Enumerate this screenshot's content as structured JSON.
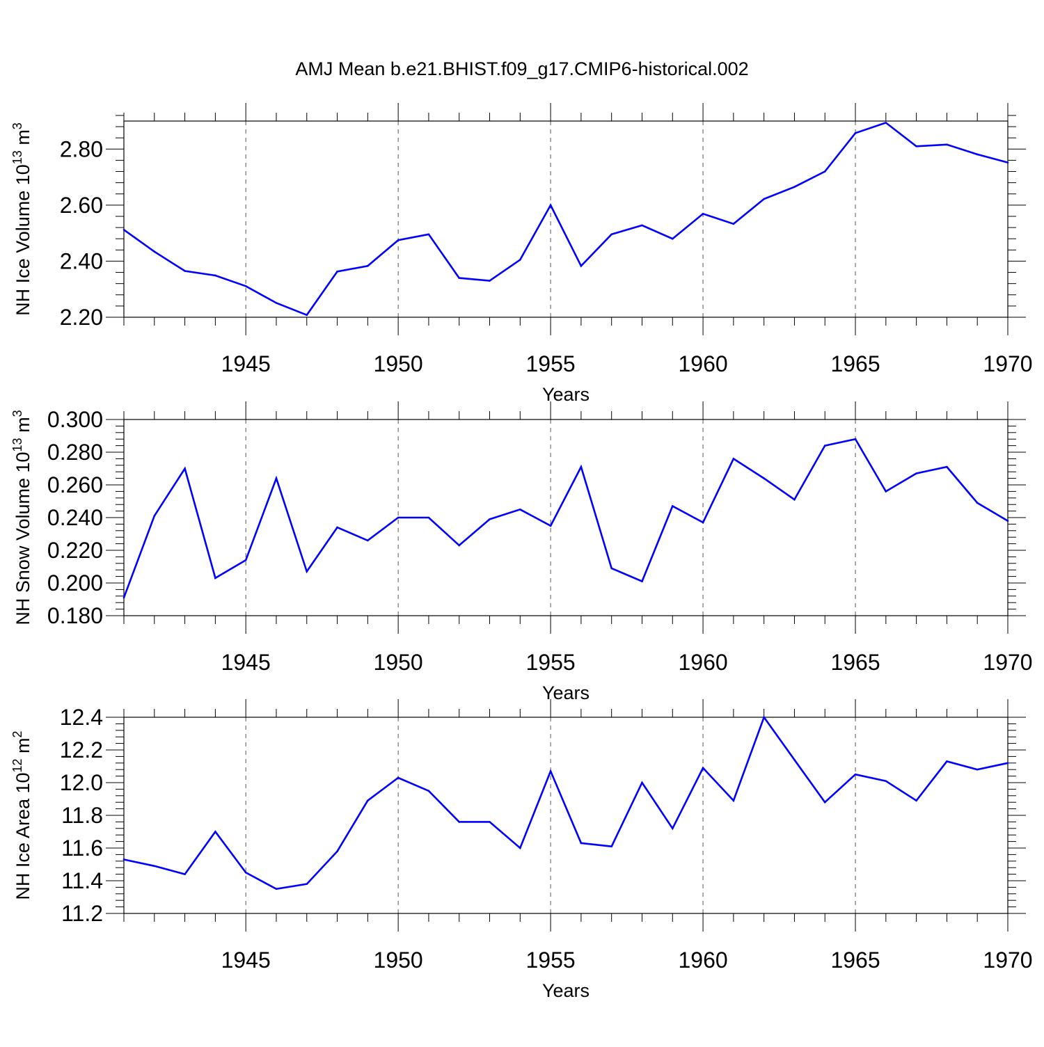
{
  "title": "AMJ Mean b.e21.BHIST.f09_g17.CMIP6-historical.002",
  "colors": {
    "line": "#0000ff",
    "axis": "#000000",
    "grid": "#555555"
  },
  "chart_data": [
    {
      "type": "line",
      "xlabel": "Years",
      "ylabel": {
        "main": "NH Ice Volume 10",
        "sup": "13",
        "unit": " m",
        "unit_sup": "3"
      },
      "xlim": [
        1941,
        1970
      ],
      "ylim": [
        2.2,
        2.9
      ],
      "x_ticks": [
        "1945",
        "1950",
        "1955",
        "1960",
        "1965",
        "1970"
      ],
      "y_ticks": [
        "2.20",
        "2.40",
        "2.60",
        "2.80"
      ],
      "grid": "vertical dashed at major x ticks",
      "x": [
        1941,
        1942,
        1943,
        1944,
        1945,
        1946,
        1947,
        1948,
        1949,
        1950,
        1951,
        1952,
        1953,
        1954,
        1955,
        1956,
        1957,
        1958,
        1959,
        1960,
        1961,
        1962,
        1963,
        1964,
        1965,
        1966,
        1967,
        1968,
        1969,
        1970
      ],
      "values": [
        2.512,
        2.434,
        2.365,
        2.349,
        2.311,
        2.251,
        2.208,
        2.363,
        2.383,
        2.475,
        2.496,
        2.34,
        2.33,
        2.405,
        2.6,
        2.383,
        2.496,
        2.528,
        2.48,
        2.569,
        2.533,
        2.622,
        2.665,
        2.72,
        2.857,
        2.894,
        2.81,
        2.816,
        2.781,
        2.752
      ]
    },
    {
      "type": "line",
      "xlabel": "Years",
      "ylabel": {
        "main": "NH Snow Volume 10",
        "sup": "13",
        "unit": " m",
        "unit_sup": "3"
      },
      "xlim": [
        1941,
        1970
      ],
      "ylim": [
        0.18,
        0.3
      ],
      "x_ticks": [
        "1945",
        "1950",
        "1955",
        "1960",
        "1965",
        "1970"
      ],
      "y_ticks": [
        "0.180",
        "0.200",
        "0.220",
        "0.240",
        "0.260",
        "0.280",
        "0.300"
      ],
      "grid": "vertical dashed at major x ticks",
      "x": [
        1941,
        1942,
        1943,
        1944,
        1945,
        1946,
        1947,
        1948,
        1949,
        1950,
        1951,
        1952,
        1953,
        1954,
        1955,
        1956,
        1957,
        1958,
        1959,
        1960,
        1961,
        1962,
        1963,
        1964,
        1965,
        1966,
        1967,
        1968,
        1969,
        1970
      ],
      "values": [
        0.191,
        0.241,
        0.27,
        0.203,
        0.214,
        0.264,
        0.207,
        0.234,
        0.226,
        0.24,
        0.24,
        0.223,
        0.239,
        0.245,
        0.235,
        0.271,
        0.209,
        0.201,
        0.247,
        0.237,
        0.276,
        0.264,
        0.251,
        0.284,
        0.288,
        0.256,
        0.267,
        0.271,
        0.249,
        0.238
      ]
    },
    {
      "type": "line",
      "xlabel": "Years",
      "ylabel": {
        "main": "NH Ice Area 10",
        "sup": "12",
        "unit": " m",
        "unit_sup": "2"
      },
      "xlim": [
        1941,
        1970
      ],
      "ylim": [
        11.2,
        12.4
      ],
      "x_ticks": [
        "1945",
        "1950",
        "1955",
        "1960",
        "1965",
        "1970"
      ],
      "y_ticks": [
        "11.2",
        "11.4",
        "11.6",
        "11.8",
        "12.0",
        "12.2",
        "12.4"
      ],
      "grid": "vertical dashed at major x ticks",
      "x": [
        1941,
        1942,
        1943,
        1944,
        1945,
        1946,
        1947,
        1948,
        1949,
        1950,
        1951,
        1952,
        1953,
        1954,
        1955,
        1956,
        1957,
        1958,
        1959,
        1960,
        1961,
        1962,
        1963,
        1964,
        1965,
        1966,
        1967,
        1968,
        1969,
        1970
      ],
      "values": [
        11.53,
        11.49,
        11.44,
        11.7,
        11.45,
        11.35,
        11.38,
        11.58,
        11.89,
        12.03,
        11.95,
        11.76,
        11.76,
        11.6,
        12.07,
        11.63,
        11.61,
        12.0,
        11.72,
        12.09,
        11.89,
        12.4,
        12.14,
        11.88,
        12.05,
        12.01,
        11.89,
        12.13,
        12.08,
        12.12
      ]
    }
  ]
}
